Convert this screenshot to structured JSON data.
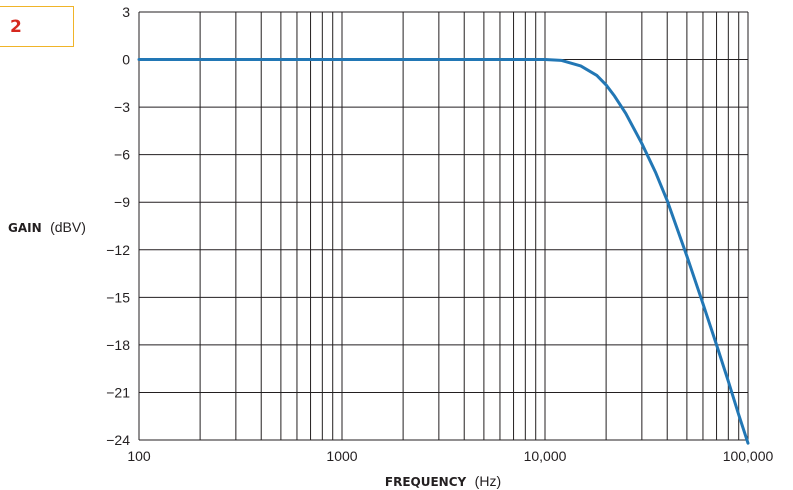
{
  "figure": {
    "badge": "2"
  },
  "chart_data": {
    "type": "line",
    "xlabel": "FREQUENCY",
    "xunit": "(Hz)",
    "ylabel": "GAIN",
    "yunit": "(dBV)",
    "x_scale": "log",
    "xlim": [
      100,
      100000
    ],
    "ylim": [
      -24,
      3
    ],
    "grid": true,
    "x_ticks": [
      100,
      1000,
      10000,
      100000
    ],
    "x_tick_labels": [
      "100",
      "1000",
      "10,000",
      "100,000"
    ],
    "y_ticks": [
      3,
      0,
      -3,
      -6,
      -9,
      -12,
      -15,
      -18,
      -21,
      -24
    ],
    "y_tick_labels": [
      "3",
      "0",
      "−3",
      "−6",
      "−9",
      "−12",
      "−15",
      "−18",
      "−21",
      "−24"
    ],
    "line_color": "#2277b5",
    "series": [
      {
        "x": [
          100,
          1000,
          5000,
          10000,
          12000,
          15000,
          18000,
          20000,
          22000,
          25000,
          30000,
          35000,
          40000,
          50000,
          60000,
          70000,
          80000,
          90000,
          100000
        ],
        "y": [
          0,
          0,
          0,
          0,
          -0.05,
          -0.4,
          -1.0,
          -1.6,
          -2.3,
          -3.4,
          -5.3,
          -7.1,
          -8.9,
          -12.4,
          -15.4,
          -18.0,
          -20.3,
          -22.4,
          -24.2
        ]
      }
    ]
  }
}
